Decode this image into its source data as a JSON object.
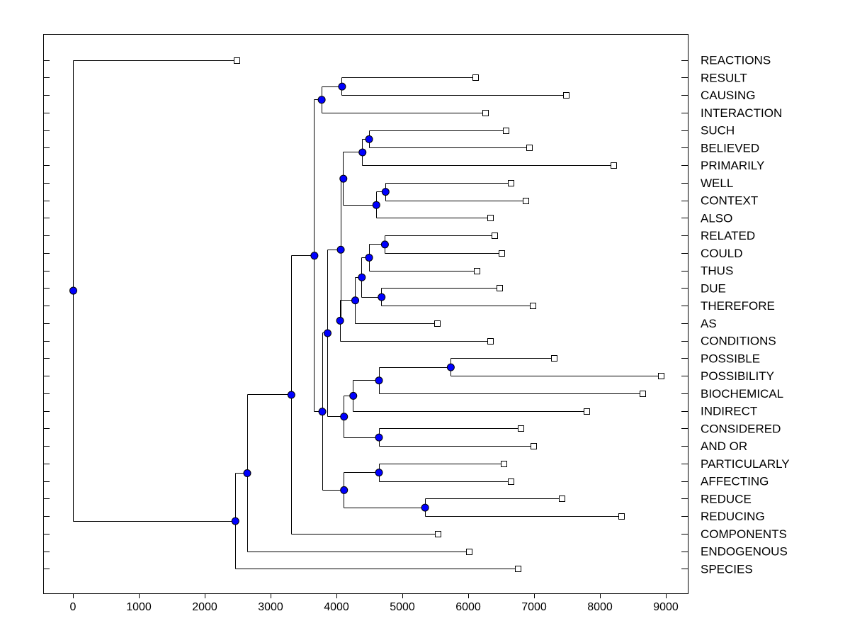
{
  "chart_data": {
    "type": "dendrogram",
    "title": "",
    "xlabel": "",
    "ylabel": "",
    "xlim": [
      -450,
      9400
    ],
    "xticks": [
      0,
      1000,
      2000,
      3000,
      4000,
      5000,
      6000,
      7000,
      8000,
      9000
    ],
    "grid": false,
    "orientation": "root-left",
    "colors": {
      "node": "#0000ff",
      "leaf": "#ffffff",
      "line": "#000000"
    },
    "leaves": [
      {
        "label": "REACTIONS",
        "value": 2480
      },
      {
        "label": "RESULT",
        "value": 6110
      },
      {
        "label": "CAUSING",
        "value": 7480
      },
      {
        "label": "INTERACTION",
        "value": 6260
      },
      {
        "label": "SUCH",
        "value": 6570
      },
      {
        "label": "BELIEVED",
        "value": 6930
      },
      {
        "label": "PRIMARILY",
        "value": 8200
      },
      {
        "label": "WELL",
        "value": 6650
      },
      {
        "label": "CONTEXT",
        "value": 6870
      },
      {
        "label": "ALSO",
        "value": 6330
      },
      {
        "label": "RELATED",
        "value": 6400
      },
      {
        "label": "COULD",
        "value": 6500
      },
      {
        "label": "THUS",
        "value": 6130
      },
      {
        "label": "DUE",
        "value": 6470
      },
      {
        "label": "THEREFORE",
        "value": 6980
      },
      {
        "label": "AS",
        "value": 5530
      },
      {
        "label": "CONDITIONS",
        "value": 6330
      },
      {
        "label": "POSSIBLE",
        "value": 7300
      },
      {
        "label": "POSSIBILITY",
        "value": 8920
      },
      {
        "label": "BIOCHEMICAL",
        "value": 8640
      },
      {
        "label": "INDIRECT",
        "value": 7800
      },
      {
        "label": "CONSIDERED",
        "value": 6800
      },
      {
        "label": "AND OR",
        "value": 6990
      },
      {
        "label": "PARTICULARLY",
        "value": 6540
      },
      {
        "label": "AFFECTING",
        "value": 6650
      },
      {
        "label": "REDUCE",
        "value": 7420
      },
      {
        "label": "REDUCING",
        "value": 8320
      },
      {
        "label": "COMPONENTS",
        "value": 5540
      },
      {
        "label": "ENDOGENOUS",
        "value": 6010
      },
      {
        "label": "SPECIES",
        "value": 6750
      }
    ],
    "merges": [
      {
        "id": "n1",
        "value": 4080,
        "children": [
          "RESULT",
          "CAUSING"
        ]
      },
      {
        "id": "n2",
        "value": 3770,
        "children": [
          "n1",
          "INTERACTION"
        ]
      },
      {
        "id": "n3",
        "value": 4490,
        "children": [
          "SUCH",
          "BELIEVED"
        ]
      },
      {
        "id": "n4",
        "value": 4390,
        "children": [
          "n3",
          "PRIMARILY"
        ]
      },
      {
        "id": "n5",
        "value": 4740,
        "children": [
          "WELL",
          "CONTEXT"
        ]
      },
      {
        "id": "n6",
        "value": 4600,
        "children": [
          "n5",
          "ALSO"
        ]
      },
      {
        "id": "n7",
        "value": 4100,
        "children": [
          "n4",
          "n6"
        ]
      },
      {
        "id": "n8",
        "value": 4730,
        "children": [
          "RELATED",
          "COULD"
        ]
      },
      {
        "id": "n9",
        "value": 4490,
        "children": [
          "n8",
          "THUS"
        ]
      },
      {
        "id": "n10",
        "value": 4680,
        "children": [
          "DUE",
          "THEREFORE"
        ]
      },
      {
        "id": "n11",
        "value": 4380,
        "children": [
          "n9",
          "n10"
        ]
      },
      {
        "id": "n12",
        "value": 4280,
        "children": [
          "n11",
          "AS"
        ]
      },
      {
        "id": "n13",
        "value": 4050,
        "children": [
          "n12",
          "CONDITIONS"
        ]
      },
      {
        "id": "n14",
        "value": 4060,
        "children": [
          "n7",
          "n13"
        ]
      },
      {
        "id": "n15",
        "value": 5730,
        "children": [
          "POSSIBLE",
          "POSSIBILITY"
        ]
      },
      {
        "id": "n16",
        "value": 4640,
        "children": [
          "n15",
          "BIOCHEMICAL"
        ]
      },
      {
        "id": "n17",
        "value": 4250,
        "children": [
          "n16",
          "INDIRECT"
        ]
      },
      {
        "id": "n18",
        "value": 4640,
        "children": [
          "CONSIDERED",
          "AND OR"
        ]
      },
      {
        "id": "n19",
        "value": 4110,
        "children": [
          "n17",
          "n18"
        ]
      },
      {
        "id": "n20",
        "value": 3860,
        "children": [
          "n14",
          "n19"
        ]
      },
      {
        "id": "n21",
        "value": 4640,
        "children": [
          "PARTICULARLY",
          "AFFECTING"
        ]
      },
      {
        "id": "n22",
        "value": 5340,
        "children": [
          "REDUCE",
          "REDUCING"
        ]
      },
      {
        "id": "n23",
        "value": 4110,
        "children": [
          "n21",
          "n22"
        ]
      },
      {
        "id": "n24",
        "value": 3780,
        "children": [
          "n20",
          "n23"
        ]
      },
      {
        "id": "n25",
        "value": 3660,
        "children": [
          "n2",
          "n24"
        ]
      },
      {
        "id": "n26",
        "value": 3310,
        "children": [
          "n25",
          "COMPONENTS"
        ]
      },
      {
        "id": "n27",
        "value": 2640,
        "children": [
          "n26",
          "ENDOGENOUS"
        ]
      },
      {
        "id": "n28",
        "value": 2460,
        "children": [
          "n27",
          "SPECIES"
        ]
      },
      {
        "id": "n29",
        "value": 0,
        "children": [
          "REACTIONS",
          "n28"
        ]
      }
    ]
  }
}
